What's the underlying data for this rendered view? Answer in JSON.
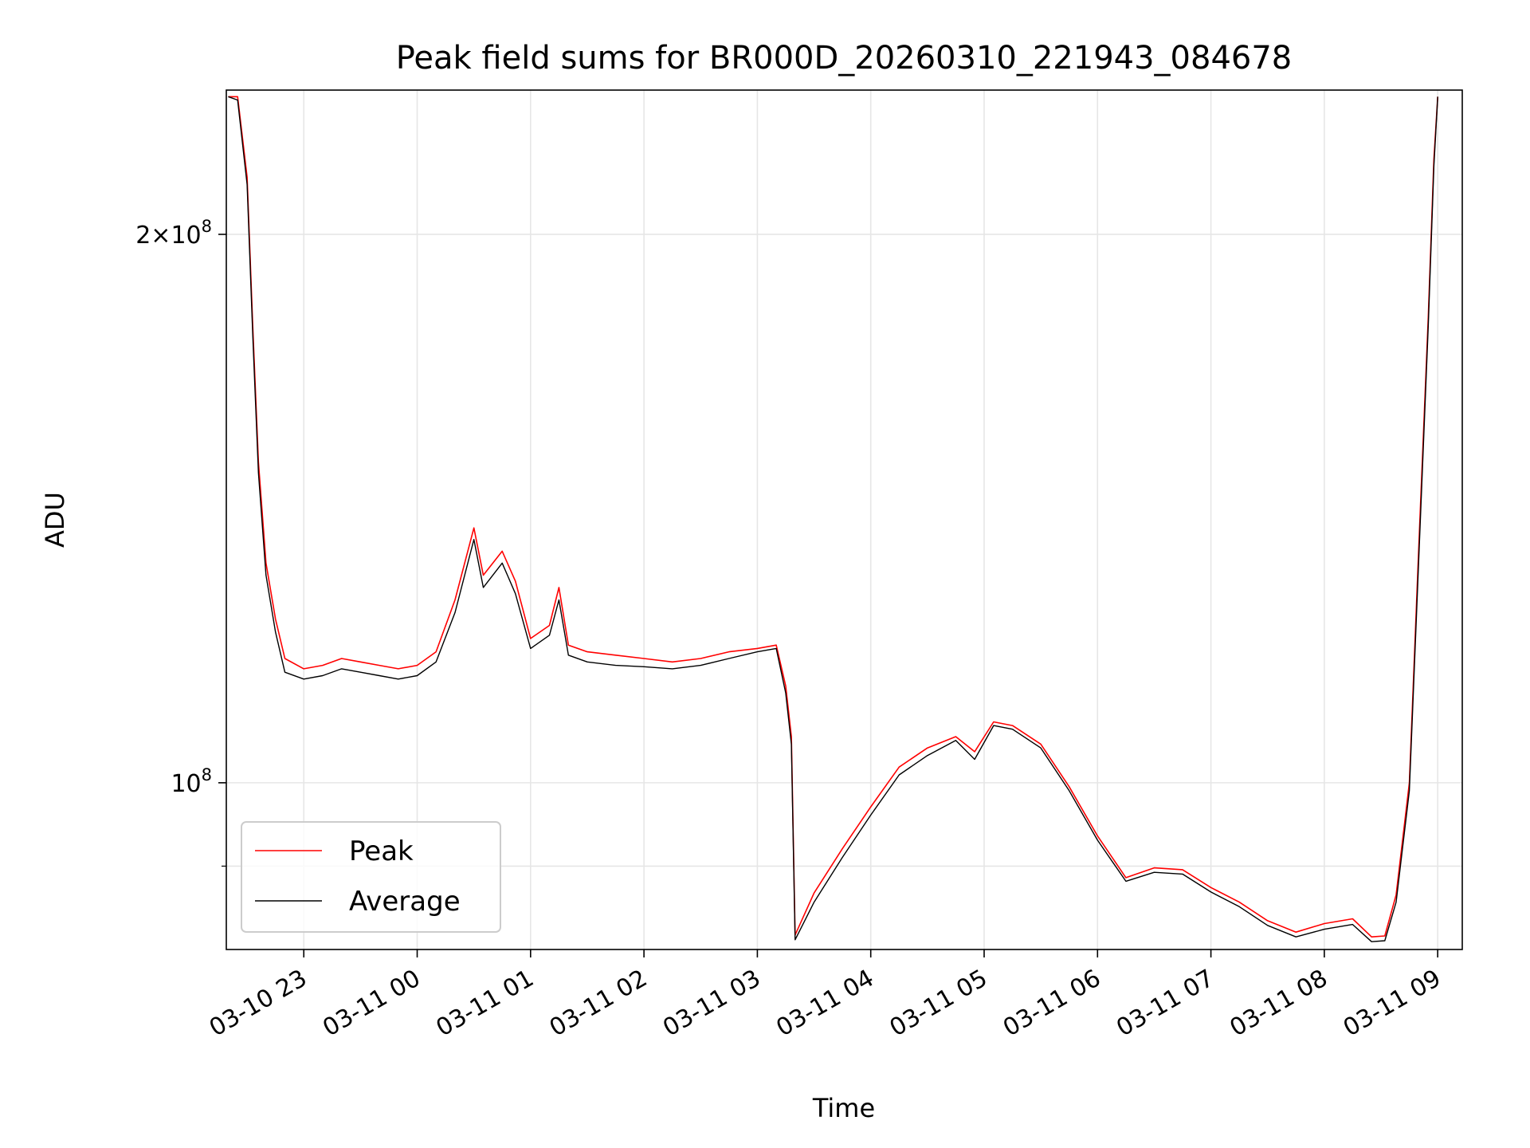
{
  "chart_data": {
    "type": "line",
    "title": "Peak field sums for BR000D_20260310_221943_084678",
    "xlabel": "Time",
    "ylabel": "ADU",
    "yscale": "log",
    "grid": true,
    "legend_position": "lower-left",
    "xlim": [
      "2026-03-10 22:19",
      "2026-03-11 09:13"
    ],
    "ylim": [
      81000000,
      240000000
    ],
    "x_ticks": [
      {
        "t": "2026-03-10 23:00",
        "label": "03-10 23"
      },
      {
        "t": "2026-03-11 00:00",
        "label": "03-11 00"
      },
      {
        "t": "2026-03-11 01:00",
        "label": "03-11 01"
      },
      {
        "t": "2026-03-11 02:00",
        "label": "03-11 02"
      },
      {
        "t": "2026-03-11 03:00",
        "label": "03-11 03"
      },
      {
        "t": "2026-03-11 04:00",
        "label": "03-11 04"
      },
      {
        "t": "2026-03-11 05:00",
        "label": "03-11 05"
      },
      {
        "t": "2026-03-11 06:00",
        "label": "03-11 06"
      },
      {
        "t": "2026-03-11 07:00",
        "label": "03-11 07"
      },
      {
        "t": "2026-03-11 08:00",
        "label": "03-11 08"
      },
      {
        "t": "2026-03-11 09:00",
        "label": "03-11 09"
      }
    ],
    "y_ticks_major": [
      {
        "v": 100000000,
        "base": "10",
        "exp": "8",
        "mult": ""
      },
      {
        "v": 200000000,
        "base": "10",
        "exp": "8",
        "mult": "2×"
      }
    ],
    "y_ticks_minor": [
      90000000
    ],
    "series": [
      {
        "name": "Peak",
        "color": "#ff0000",
        "x": [
          "2026-03-10 22:20",
          "2026-03-10 22:25",
          "2026-03-10 22:30",
          "2026-03-10 22:33",
          "2026-03-10 22:36",
          "2026-03-10 22:40",
          "2026-03-10 22:45",
          "2026-03-10 22:50",
          "2026-03-10 23:00",
          "2026-03-10 23:10",
          "2026-03-10 23:20",
          "2026-03-10 23:30",
          "2026-03-10 23:40",
          "2026-03-10 23:50",
          "2026-03-11 00:00",
          "2026-03-11 00:10",
          "2026-03-11 00:20",
          "2026-03-11 00:30",
          "2026-03-11 00:35",
          "2026-03-11 00:45",
          "2026-03-11 00:52",
          "2026-03-11 01:00",
          "2026-03-11 01:10",
          "2026-03-11 01:15",
          "2026-03-11 01:20",
          "2026-03-11 01:30",
          "2026-03-11 01:45",
          "2026-03-11 02:00",
          "2026-03-11 02:15",
          "2026-03-11 02:30",
          "2026-03-11 02:45",
          "2026-03-11 03:00",
          "2026-03-11 03:10",
          "2026-03-11 03:15",
          "2026-03-11 03:18",
          "2026-03-11 03:20",
          "2026-03-11 03:30",
          "2026-03-11 03:45",
          "2026-03-11 04:00",
          "2026-03-11 04:15",
          "2026-03-11 04:30",
          "2026-03-11 04:45",
          "2026-03-11 04:55",
          "2026-03-11 05:05",
          "2026-03-11 05:15",
          "2026-03-11 05:30",
          "2026-03-11 05:45",
          "2026-03-11 06:00",
          "2026-03-11 06:15",
          "2026-03-11 06:30",
          "2026-03-11 06:45",
          "2026-03-11 07:00",
          "2026-03-11 07:15",
          "2026-03-11 07:30",
          "2026-03-11 07:45",
          "2026-03-11 08:00",
          "2026-03-11 08:15",
          "2026-03-11 08:25",
          "2026-03-11 08:32",
          "2026-03-11 08:38",
          "2026-03-11 08:45",
          "2026-03-11 08:50",
          "2026-03-11 08:55",
          "2026-03-11 08:58",
          "2026-03-11 09:00"
        ],
        "values": [
          238000000,
          238000000,
          215000000,
          178000000,
          150000000,
          132000000,
          123000000,
          117000000,
          115500000,
          116000000,
          117000000,
          116500000,
          116000000,
          115500000,
          116000000,
          118000000,
          126000000,
          138000000,
          130000000,
          134000000,
          129000000,
          120000000,
          122000000,
          128000000,
          119000000,
          118000000,
          117500000,
          117000000,
          116500000,
          117000000,
          118000000,
          118500000,
          119000000,
          113000000,
          106000000,
          82500000,
          87000000,
          92000000,
          97000000,
          102000000,
          104500000,
          106000000,
          104000000,
          108000000,
          107500000,
          105000000,
          99500000,
          93500000,
          88700000,
          89800000,
          89600000,
          87600000,
          86000000,
          84000000,
          82800000,
          83700000,
          84200000,
          82300000,
          82400000,
          86800000,
          100000000,
          135000000,
          180000000,
          220000000,
          238000000
        ]
      },
      {
        "name": "Average",
        "color": "#000000",
        "x": [
          "2026-03-10 22:20",
          "2026-03-10 22:25",
          "2026-03-10 22:30",
          "2026-03-10 22:33",
          "2026-03-10 22:36",
          "2026-03-10 22:40",
          "2026-03-10 22:45",
          "2026-03-10 22:50",
          "2026-03-10 23:00",
          "2026-03-10 23:10",
          "2026-03-10 23:20",
          "2026-03-10 23:30",
          "2026-03-10 23:40",
          "2026-03-10 23:50",
          "2026-03-11 00:00",
          "2026-03-11 00:10",
          "2026-03-11 00:20",
          "2026-03-11 00:30",
          "2026-03-11 00:35",
          "2026-03-11 00:45",
          "2026-03-11 00:52",
          "2026-03-11 01:00",
          "2026-03-11 01:10",
          "2026-03-11 01:15",
          "2026-03-11 01:20",
          "2026-03-11 01:30",
          "2026-03-11 01:45",
          "2026-03-11 02:00",
          "2026-03-11 02:15",
          "2026-03-11 02:30",
          "2026-03-11 02:45",
          "2026-03-11 03:00",
          "2026-03-11 03:10",
          "2026-03-11 03:15",
          "2026-03-11 03:18",
          "2026-03-11 03:20",
          "2026-03-11 03:30",
          "2026-03-11 03:45",
          "2026-03-11 04:00",
          "2026-03-11 04:15",
          "2026-03-11 04:30",
          "2026-03-11 04:45",
          "2026-03-11 04:55",
          "2026-03-11 05:05",
          "2026-03-11 05:15",
          "2026-03-11 05:30",
          "2026-03-11 05:45",
          "2026-03-11 06:00",
          "2026-03-11 06:15",
          "2026-03-11 06:30",
          "2026-03-11 06:45",
          "2026-03-11 07:00",
          "2026-03-11 07:15",
          "2026-03-11 07:30",
          "2026-03-11 07:45",
          "2026-03-11 08:00",
          "2026-03-11 08:15",
          "2026-03-11 08:25",
          "2026-03-11 08:32",
          "2026-03-11 08:38",
          "2026-03-11 08:45",
          "2026-03-11 08:50",
          "2026-03-11 08:55",
          "2026-03-11 08:58",
          "2026-03-11 09:00"
        ],
        "values": [
          238000000,
          237000000,
          213000000,
          176000000,
          148000000,
          130000000,
          121000000,
          115000000,
          114000000,
          114500000,
          115500000,
          115000000,
          114500000,
          114000000,
          114500000,
          116500000,
          124000000,
          136000000,
          128000000,
          132000000,
          127000000,
          118500000,
          120500000,
          126000000,
          117500000,
          116500000,
          116000000,
          115800000,
          115500000,
          116000000,
          117000000,
          118000000,
          118500000,
          112000000,
          105000000,
          82000000,
          86000000,
          91000000,
          96000000,
          101000000,
          103500000,
          105500000,
          103000000,
          107500000,
          107000000,
          104500000,
          99000000,
          93000000,
          88300000,
          89300000,
          89100000,
          87100000,
          85500000,
          83500000,
          82300000,
          83100000,
          83600000,
          81800000,
          81900000,
          86000000,
          99000000,
          133000000,
          178000000,
          218000000,
          238000000
        ]
      }
    ]
  }
}
